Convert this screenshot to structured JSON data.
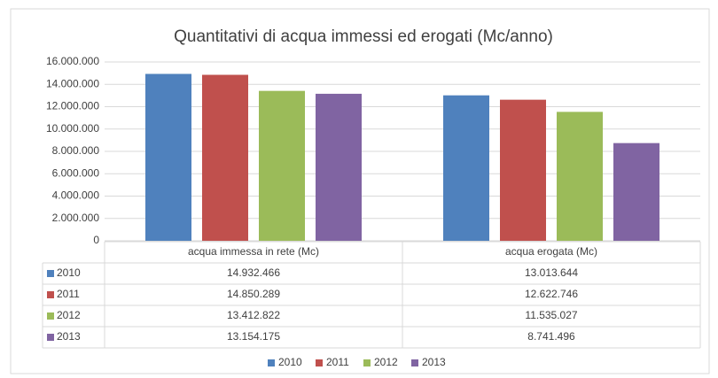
{
  "chart_data": {
    "type": "bar",
    "title": "Quantitativi di acqua immessi ed erogati (Mc/anno)",
    "categories": [
      "acqua immessa in rete (Mc)",
      "acqua erogata (Mc)"
    ],
    "series": [
      {
        "name": "2010",
        "color": "#4f81bd",
        "values": [
          14932466,
          13013644
        ],
        "value_labels": [
          "14.932.466",
          "13.013.644"
        ]
      },
      {
        "name": "2011",
        "color": "#c0504d",
        "values": [
          14850289,
          12622746
        ],
        "value_labels": [
          "14.850.289",
          "12.622.746"
        ]
      },
      {
        "name": "2012",
        "color": "#9bbb59",
        "values": [
          13412822,
          11535027
        ],
        "value_labels": [
          "13.412.822",
          "11.535.027"
        ]
      },
      {
        "name": "2013",
        "color": "#8064a2",
        "values": [
          13154175,
          8741496
        ],
        "value_labels": [
          "13.154.175",
          "8.741.496"
        ]
      }
    ],
    "ylim": [
      0,
      16000000
    ],
    "yticks": [
      0,
      {
        "value": 2000000,
        "label": "2.000.000"
      },
      {
        "value": 4000000,
        "label": "4.000.000"
      },
      {
        "value": 6000000,
        "label": "6.000.000"
      },
      {
        "value": 8000000,
        "label": "8.000.000"
      },
      {
        "value": 10000000,
        "label": "10.000.000"
      },
      {
        "value": 12000000,
        "label": "12.000.000"
      },
      {
        "value": 14000000,
        "label": "14.000.000"
      },
      {
        "value": 16000000,
        "label": "16.000.000"
      }
    ],
    "grid": true,
    "legend": "bottom"
  }
}
